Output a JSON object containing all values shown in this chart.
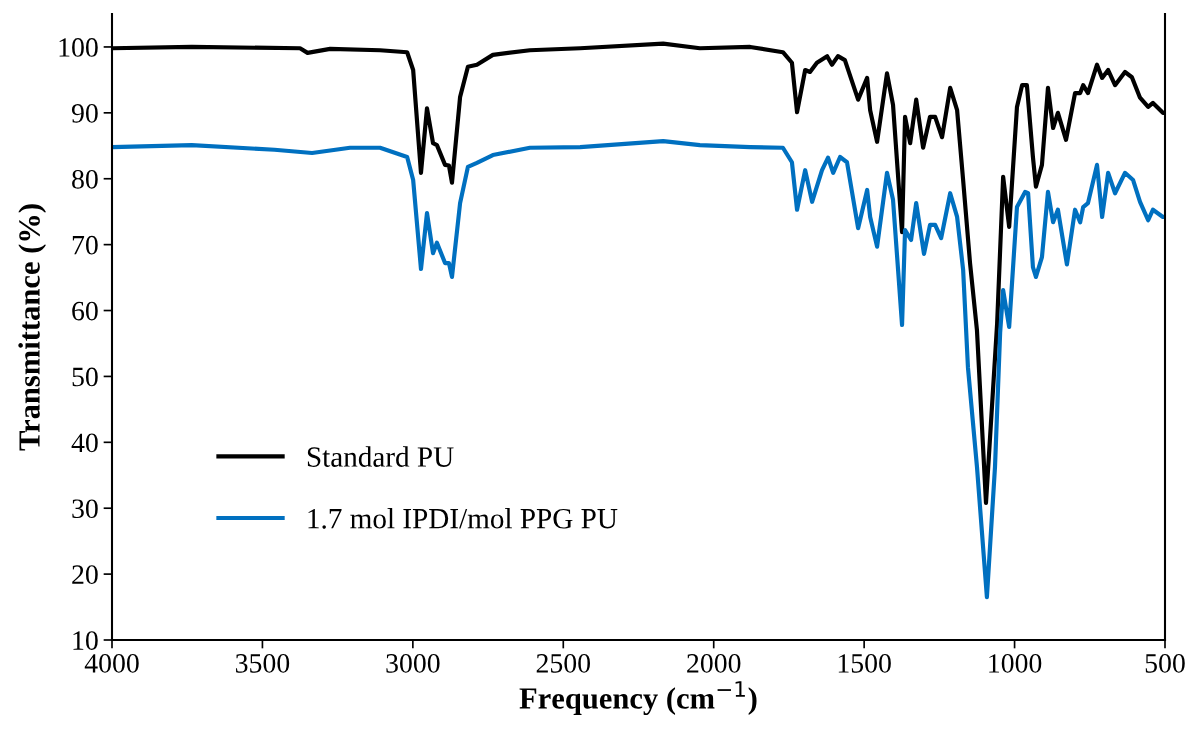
{
  "chart_data": {
    "type": "line",
    "xlabel": "Frequency (cm$^{−1}$)",
    "ylabel": "Transmittance (%)",
    "xlim": [
      4000,
      500
    ],
    "xticks": [
      4000,
      3500,
      3000,
      2500,
      2000,
      1500,
      1000,
      500
    ],
    "ylim": [
      10,
      105
    ],
    "yticks": [
      10,
      20,
      30,
      40,
      50,
      60,
      70,
      80,
      90,
      100
    ],
    "grid": false,
    "legend": "lower left",
    "marker": "none",
    "line_style": "solid",
    "series": [
      {
        "name": "Standard PU",
        "color": "#000000",
        "x": [
          4000,
          3735,
          3375,
          3350,
          3275,
          3109,
          3019,
          2999,
          2973,
          2953,
          2933,
          2920,
          2893,
          2880,
          2870,
          2843,
          2817,
          2787,
          2734,
          2611,
          2444,
          2168,
          2046,
          1879,
          1770,
          1740,
          1723,
          1696,
          1680,
          1657,
          1623,
          1607,
          1587,
          1564,
          1520,
          1490,
          1480,
          1457,
          1424,
          1404,
          1374,
          1364,
          1347,
          1327,
          1304,
          1281,
          1264,
          1241,
          1214,
          1191,
          1171,
          1148,
          1125,
          1095,
          1058,
          1038,
          1018,
          992,
          975,
          959,
          939,
          929,
          909,
          889,
          872,
          856,
          829,
          799,
          782,
          772,
          756,
          726,
          709,
          689,
          666,
          633,
          610,
          583,
          556,
          540,
          507,
          500
        ],
        "values": [
          99.8,
          100,
          99.8,
          99.1,
          99.7,
          99.5,
          99.2,
          96.5,
          80.9,
          90.7,
          85.4,
          85.1,
          82.1,
          82,
          79.4,
          92.4,
          97,
          97.3,
          98.8,
          99.5,
          99.8,
          100.5,
          99.8,
          100,
          99.2,
          97.6,
          90.1,
          96.5,
          96.2,
          97.6,
          98.6,
          97.3,
          98.6,
          98,
          92,
          95.3,
          90.4,
          85.6,
          96,
          91.2,
          71.9,
          89.4,
          85.4,
          92,
          84.7,
          89.4,
          89.4,
          86.3,
          93.8,
          90.4,
          79.8,
          67.2,
          57,
          30.8,
          58,
          80.3,
          72.7,
          90.9,
          94.2,
          94.2,
          83.3,
          78.8,
          82.1,
          93.8,
          87.7,
          90,
          85.9,
          93,
          93,
          94.2,
          93,
          97.3,
          95.3,
          96.5,
          94.2,
          96.2,
          95.4,
          92.3,
          90.9,
          91.5,
          90,
          90
        ]
      },
      {
        "name": "1.7 mol IPDI/mol PPG PU",
        "color": "#0070c0",
        "x": [
          4000,
          3735,
          3460,
          3335,
          3209,
          3109,
          3019,
          2999,
          2973,
          2953,
          2933,
          2920,
          2893,
          2880,
          2870,
          2843,
          2817,
          2787,
          2734,
          2611,
          2444,
          2168,
          2046,
          1879,
          1770,
          1740,
          1723,
          1696,
          1673,
          1640,
          1620,
          1603,
          1580,
          1557,
          1520,
          1507,
          1490,
          1480,
          1457,
          1424,
          1404,
          1374,
          1364,
          1344,
          1327,
          1301,
          1281,
          1264,
          1244,
          1214,
          1191,
          1171,
          1155,
          1125,
          1092,
          1065,
          1048,
          1038,
          1018,
          992,
          965,
          955,
          939,
          929,
          909,
          889,
          872,
          856,
          826,
          799,
          782,
          772,
          756,
          726,
          709,
          689,
          666,
          633,
          606,
          583,
          556,
          540,
          507,
          500
        ],
        "values": [
          84.8,
          85.1,
          84.4,
          83.9,
          84.7,
          84.7,
          83.3,
          79.8,
          66.3,
          74.8,
          68.7,
          70.3,
          67.2,
          67.2,
          65.1,
          76.3,
          81.8,
          82.4,
          83.6,
          84.7,
          84.8,
          85.7,
          85.1,
          84.8,
          84.7,
          82.5,
          75.3,
          81.3,
          76.5,
          81.3,
          83.2,
          80.9,
          83.3,
          82.5,
          72.5,
          75,
          78.3,
          74.2,
          69.7,
          80.9,
          76.8,
          57.8,
          72.2,
          70.7,
          76.3,
          68.6,
          73,
          73,
          71,
          77.8,
          74.2,
          66.2,
          51.4,
          36.3,
          16.5,
          36.3,
          56.6,
          63.1,
          57.5,
          75.7,
          78,
          77.8,
          66.6,
          65.1,
          68.1,
          78,
          73.4,
          75.3,
          67,
          75.3,
          73.4,
          75.7,
          76.3,
          82.1,
          74.2,
          80.9,
          77.8,
          80.9,
          79.8,
          76.5,
          73.7,
          75.3,
          74.2,
          74.2
        ]
      }
    ]
  }
}
